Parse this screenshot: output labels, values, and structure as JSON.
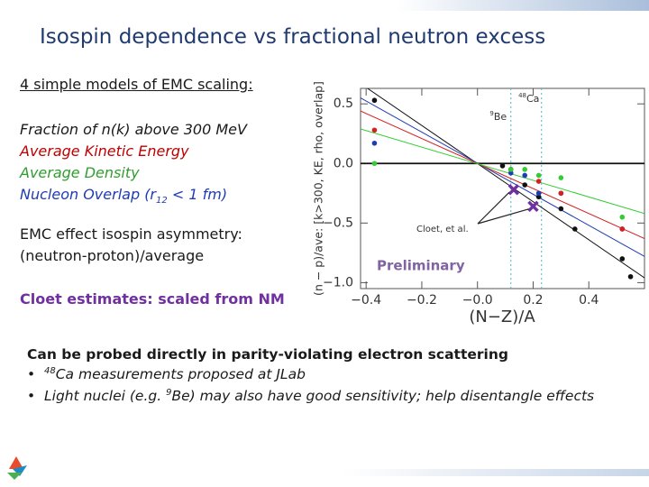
{
  "slide": {
    "title": "Isospin dependence vs fractional neutron excess",
    "models_heading": "4 simple models of EMC scaling:",
    "models": [
      {
        "text": "Fraction of n(k) above 300 MeV",
        "color": "#1a1a1a"
      },
      {
        "text": "Average Kinetic Energy",
        "color": "#c00000"
      },
      {
        "text": "Average Density",
        "color": "#2e9e2e"
      },
      {
        "text": "Nucleon Overlap (r",
        "sub": "12",
        "after": " < 1 fm)",
        "color": "#1f3cb4"
      }
    ],
    "asymmetry_1": "EMC effect isospin asymmetry:",
    "asymmetry_2": "(neutron-proton)/average",
    "cloet": "Cloet estimates: scaled from NM",
    "probe": "Can be probed directly in parity-violating electron scattering",
    "bullet_1": {
      "sup": "48",
      "text": "Ca measurements proposed at JLab"
    },
    "bullet_2": {
      "before": "Light nuclei (e.g. ",
      "sup": "9",
      "text": "Be) may also have good sensitivity; help disentangle effects"
    }
  },
  "chart_data": {
    "type": "scatter",
    "y_label": "(n − p)/ave: [k>300, KE, rho, overlap]",
    "x_label": "(N−Z)/A",
    "xlim": [
      -0.42,
      0.6
    ],
    "ylim": [
      -1.05,
      0.63
    ],
    "xticks": [
      {
        "value": -0.4,
        "label": "−0.4"
      },
      {
        "value": -0.2,
        "label": "−0.2"
      },
      {
        "value": 0,
        "label": "−0.0"
      },
      0.2,
      0.4
    ],
    "yticks": [
      0.5,
      {
        "value": 0,
        "label": "0.0"
      },
      {
        "value": -0.5,
        "label": "−0.5"
      },
      {
        "value": -1,
        "label": "−1.0"
      }
    ],
    "series": [
      {
        "color": "#111111",
        "marker": "dot",
        "x": [
          -0.37,
          0.09,
          0.12,
          0.17,
          0.22,
          0.3,
          0.35,
          0.52,
          0.55
        ],
        "values": [
          0.53,
          -0.02,
          -0.05,
          -0.18,
          -0.28,
          -0.38,
          -0.55,
          -0.8,
          -0.95
        ]
      },
      {
        "color": "#1f3cb4",
        "marker": "dot",
        "x": [
          -0.37,
          0.12,
          0.17,
          0.22,
          0.3,
          0.52
        ],
        "values": [
          0.17,
          -0.08,
          -0.1,
          -0.25,
          -0.25,
          -0.55
        ]
      },
      {
        "color": "#d42020",
        "marker": "dot",
        "x": [
          -0.37,
          0.12,
          0.22,
          0.3,
          0.52
        ],
        "values": [
          0.28,
          -0.05,
          -0.15,
          -0.25,
          -0.55
        ]
      },
      {
        "color": "#33cc33",
        "marker": "dot",
        "x": [
          -0.37,
          0.12,
          0.17,
          0.22,
          0.3,
          0.52
        ],
        "values": [
          0.0,
          -0.05,
          -0.05,
          -0.1,
          -0.12,
          -0.45
        ]
      },
      {
        "color": "#7030a0",
        "marker": "x",
        "x": [
          0.13,
          0.2
        ],
        "values": [
          -0.22,
          -0.36
        ]
      }
    ],
    "fits": [
      {
        "color": "#111111",
        "x": [
          -0.42,
          0.6
        ],
        "values": [
          0.67,
          -0.96
        ]
      },
      {
        "color": "#1f3cb4",
        "x": [
          -0.42,
          0.6
        ],
        "values": [
          0.55,
          -0.78
        ]
      },
      {
        "color": "#d42020",
        "x": [
          -0.42,
          0.6
        ],
        "values": [
          0.44,
          -0.63
        ]
      },
      {
        "color": "#33cc33",
        "x": [
          -0.42,
          0.6
        ],
        "values": [
          0.29,
          -0.42
        ]
      }
    ],
    "annotations": [
      {
        "x": 0.12,
        "sup": "9",
        "text": "Be"
      },
      {
        "x": 0.23,
        "sup": "48",
        "text": "Ca"
      }
    ],
    "cloet_label": "Cloet, et al.",
    "preliminary": "Preliminary"
  }
}
